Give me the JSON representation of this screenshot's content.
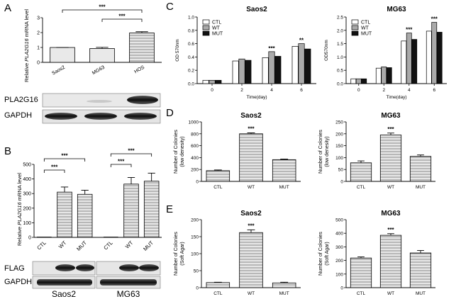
{
  "panels": {
    "A": "A",
    "B": "B",
    "C": "C",
    "D": "D",
    "E": "E"
  },
  "blots": {
    "A_pla2g16": "PLA2G16",
    "A_gapdh": "GAPDH",
    "B_flag": "FLAG",
    "B_gapdh": "GAPDH",
    "B_saos2": "Saos2",
    "B_mg63": "MG63"
  },
  "colors": {
    "ctl": "#ffffff",
    "wt": "#aaaaaa",
    "mut": "#111111",
    "hatch": "#7a7a7a"
  },
  "chart_data": [
    {
      "id": "A",
      "type": "bar",
      "ylabel_pre": "Relative ",
      "ylabel_gene": "PLA2G16",
      "ylabel_post": " mRNA level",
      "categories": [
        "Saos2",
        "MG63",
        "HOS"
      ],
      "values": [
        1.0,
        0.93,
        1.98
      ],
      "errors": [
        0.0,
        0.08,
        0.08
      ],
      "ylim": [
        0,
        3
      ],
      "yticks": [
        0,
        1,
        2,
        3
      ],
      "significance": [
        {
          "from": 0,
          "to": 2,
          "label": "***"
        },
        {
          "from": 1,
          "to": 2,
          "label": "***"
        }
      ]
    },
    {
      "id": "B",
      "type": "bar",
      "ylabel_pre": "Relative ",
      "ylabel_gene": "PLA2G16",
      "ylabel_post": " mRNA level",
      "categories": [
        "CTL",
        "WT",
        "MUT",
        "CTL",
        "WT",
        "MUT"
      ],
      "groups": [
        "Saos2",
        "MG63"
      ],
      "values": [
        1,
        310,
        295,
        1,
        365,
        385
      ],
      "errors": [
        0,
        35,
        28,
        0,
        45,
        55
      ],
      "ylim": [
        0,
        500
      ],
      "yticks": [
        0,
        100,
        200,
        300,
        400,
        500
      ],
      "significance": [
        {
          "from": 0,
          "to": 2,
          "label": "***"
        },
        {
          "from": 0,
          "to": 1,
          "label": "***"
        },
        {
          "from": 3,
          "to": 5,
          "label": "***"
        },
        {
          "from": 3,
          "to": 4,
          "label": "***"
        }
      ]
    },
    {
      "id": "C1",
      "type": "bar",
      "title": "Saos2",
      "xlabel": "Time(day)",
      "ylabel": "OD 570nm",
      "categories": [
        "0",
        "2",
        "4",
        "6"
      ],
      "series": [
        {
          "name": "CTL",
          "values": [
            0.05,
            0.34,
            0.39,
            0.56
          ]
        },
        {
          "name": "WT",
          "values": [
            0.05,
            0.37,
            0.48,
            0.6
          ]
        },
        {
          "name": "MUT",
          "values": [
            0.05,
            0.35,
            0.41,
            0.52
          ]
        }
      ],
      "ylim": [
        0,
        1.0
      ],
      "yticks": [
        0.0,
        0.2,
        0.4,
        0.6,
        0.8,
        1.0
      ],
      "annotations": [
        {
          "cat": 2,
          "label": "***"
        },
        {
          "cat": 3,
          "label": "**"
        }
      ],
      "legend": "top-left"
    },
    {
      "id": "C2",
      "type": "bar",
      "title": "MG63",
      "xlabel": "Time(day)",
      "ylabel": "OD570nm",
      "categories": [
        "0",
        "2",
        "4",
        "6"
      ],
      "series": [
        {
          "name": "CTL",
          "values": [
            0.18,
            0.58,
            1.6,
            1.97
          ]
        },
        {
          "name": "WT",
          "values": [
            0.18,
            0.63,
            1.9,
            2.3
          ]
        },
        {
          "name": "MUT",
          "values": [
            0.18,
            0.6,
            1.66,
            1.93
          ]
        }
      ],
      "ylim": [
        0,
        2.5
      ],
      "yticks": [
        0.0,
        0.5,
        1.0,
        1.5,
        2.0,
        2.5
      ],
      "annotations": [
        {
          "cat": 2,
          "label": "***"
        },
        {
          "cat": 3,
          "label": "***"
        }
      ],
      "legend": "top-left"
    },
    {
      "id": "D1",
      "type": "bar",
      "title": "Saos2",
      "ylabel": [
        "Number of Colonies",
        "(low denesity)"
      ],
      "categories": [
        "CTL",
        "WT",
        "MUT"
      ],
      "values": [
        180,
        800,
        365
      ],
      "errors": [
        12,
        15,
        10
      ],
      "ylim": [
        0,
        1000
      ],
      "yticks": [
        0,
        200,
        400,
        600,
        800,
        1000
      ],
      "annotations": [
        {
          "cat": 1,
          "label": "***"
        }
      ]
    },
    {
      "id": "D2",
      "type": "bar",
      "title": "MG63",
      "ylabel": [
        "Number of Colonies",
        "(low denesity)"
      ],
      "categories": [
        "CTL",
        "WT",
        "MUT"
      ],
      "values": [
        78,
        195,
        105
      ],
      "errors": [
        8,
        8,
        6
      ],
      "ylim": [
        0,
        250
      ],
      "yticks": [
        0,
        50,
        100,
        150,
        200,
        250
      ],
      "annotations": [
        {
          "cat": 1,
          "label": "***"
        }
      ]
    },
    {
      "id": "E1",
      "type": "bar",
      "title": "Saos2",
      "ylabel": [
        "Number of Colonies",
        "(Soft Agar)"
      ],
      "categories": [
        "CTL",
        "WT",
        "MUT"
      ],
      "values": [
        15,
        162,
        14
      ],
      "errors": [
        1,
        8,
        2
      ],
      "ylim": [
        0,
        200
      ],
      "yticks": [
        0,
        50,
        100,
        150,
        200
      ],
      "annotations": [
        {
          "cat": 1,
          "label": "***"
        }
      ]
    },
    {
      "id": "E2",
      "type": "bar",
      "title": "MG63",
      "ylabel": [
        "Number of Colonies",
        "(Soft Agar)"
      ],
      "categories": [
        "CTL",
        "WT",
        "MUT"
      ],
      "values": [
        218,
        385,
        255
      ],
      "errors": [
        8,
        12,
        18
      ],
      "ylim": [
        0,
        500
      ],
      "yticks": [
        0,
        100,
        200,
        300,
        400,
        500
      ],
      "annotations": [
        {
          "cat": 1,
          "label": "***"
        }
      ]
    }
  ]
}
